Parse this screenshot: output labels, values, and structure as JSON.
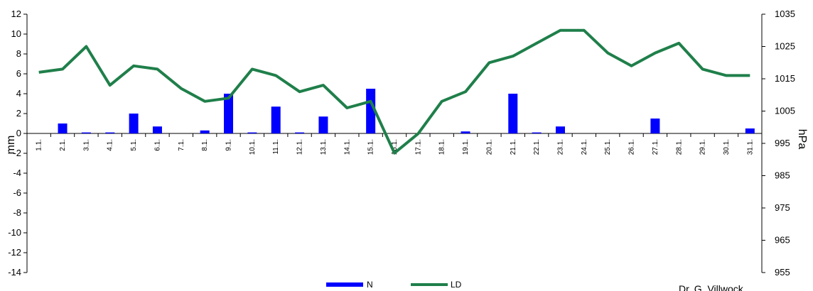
{
  "chart_data": {
    "type": "bar+line",
    "categories": [
      "1.1.",
      "2.1.",
      "3.1.",
      "4.1.",
      "5.1.",
      "6.1.",
      "7.1.",
      "8.1.",
      "9.1.",
      "10.1.",
      "11.1.",
      "12.1.",
      "13.1.",
      "14.1.",
      "15.1.",
      "16.1.",
      "17.1.",
      "18.1.",
      "19.1.",
      "20.1.",
      "21.1.",
      "22.1.",
      "23.1.",
      "24.1.",
      "25.1.",
      "26.1.",
      "27.1.",
      "28.1.",
      "29.1.",
      "30.1.",
      "31.1."
    ],
    "series": [
      {
        "name": "N",
        "type": "bar",
        "axis": "left",
        "color": "#0000ff",
        "values": [
          0,
          1.0,
          0.1,
          0.1,
          2.0,
          0.7,
          0,
          0.3,
          4.0,
          0.1,
          2.7,
          0.1,
          1.7,
          0,
          4.5,
          0,
          0,
          0,
          0.2,
          0,
          4.0,
          0.1,
          0.7,
          0,
          0,
          0,
          1.5,
          0,
          0,
          0,
          0.5
        ]
      },
      {
        "name": "LD",
        "type": "line",
        "axis": "right",
        "color": "#1f7f4a",
        "values": [
          1017,
          1018,
          1025,
          1013,
          1019,
          1018,
          1012,
          1008,
          1009,
          1018,
          1016,
          1011,
          1013,
          1006,
          1008,
          992,
          998,
          1008,
          1011,
          1020,
          1022,
          1026,
          1030,
          1030,
          1023,
          1019,
          1023,
          1026,
          1018,
          1016,
          1016
        ]
      }
    ],
    "y_left": {
      "label": "mm",
      "ylim": [
        -14,
        12
      ],
      "ticks": [
        "12",
        "10",
        "8",
        "6",
        "4",
        "2",
        "0",
        "-2",
        "-4",
        "-6",
        "-8",
        "-10",
        "-12",
        "-14"
      ]
    },
    "y_right": {
      "label": "hPa",
      "ylim": [
        955,
        1035
      ],
      "ticks": [
        "1035",
        "1025",
        "1015",
        "1005",
        "995",
        "985",
        "975",
        "965",
        "955"
      ]
    },
    "grid": false,
    "legend": "bottom-center",
    "credit": "Dr. G. Villwock"
  }
}
